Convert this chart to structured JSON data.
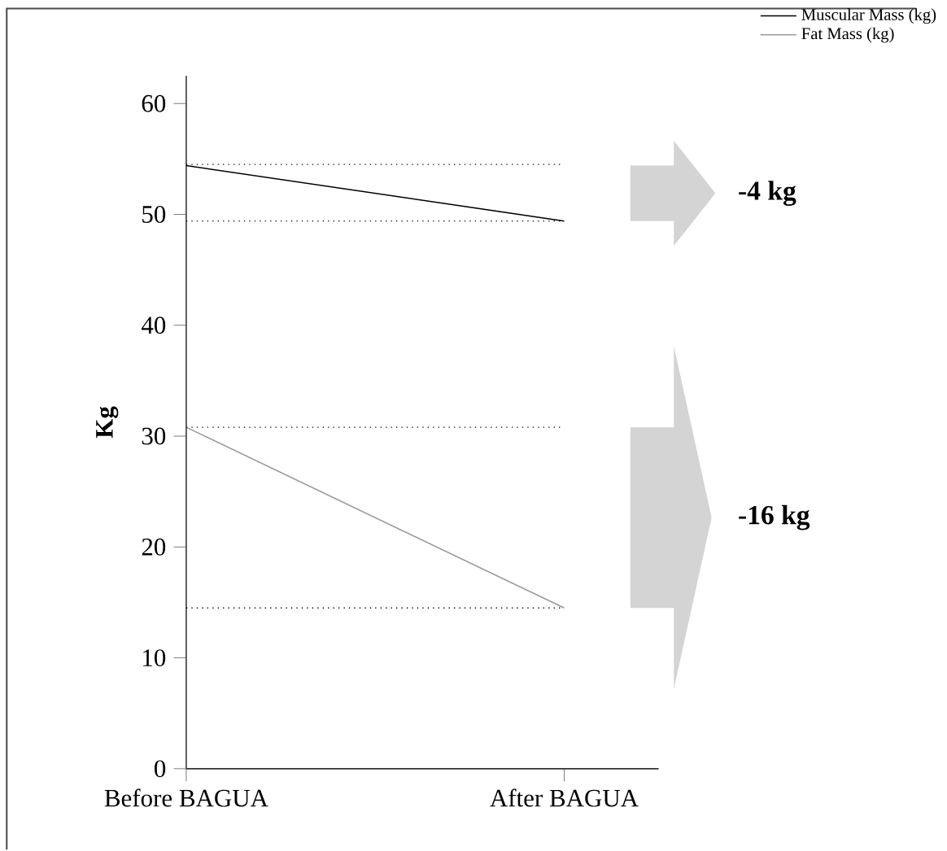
{
  "chart_data": {
    "type": "line",
    "categories": [
      "Before BAGUA",
      "After BAGUA"
    ],
    "series": [
      {
        "name": "Muscular Mass (kg)",
        "color": "#000000",
        "values": [
          54.4,
          49.4
        ]
      },
      {
        "name": "Fat Mass (kg)",
        "color": "#9a9a9a",
        "values": [
          30.8,
          14.5
        ]
      }
    ],
    "ylabel": "**Kg**",
    "ylim": [
      0,
      62.5
    ],
    "yticks": [
      0,
      10,
      20,
      30,
      40,
      50,
      60
    ],
    "ref_lines": [
      {
        "axis": "y",
        "value": 54.5,
        "line_style": "dotted"
      },
      {
        "axis": "y",
        "value": 49.4,
        "line_style": "dotted"
      },
      {
        "axis": "y",
        "value": 30.8,
        "line_style": "dotted"
      },
      {
        "axis": "y",
        "value": 14.5,
        "line_style": "dotted"
      }
    ],
    "annotations": [
      "**-4 kg**",
      "**-16 kg**"
    ],
    "legend": "top right",
    "grid": false,
    "marker": "none",
    "line_style": "solid"
  }
}
